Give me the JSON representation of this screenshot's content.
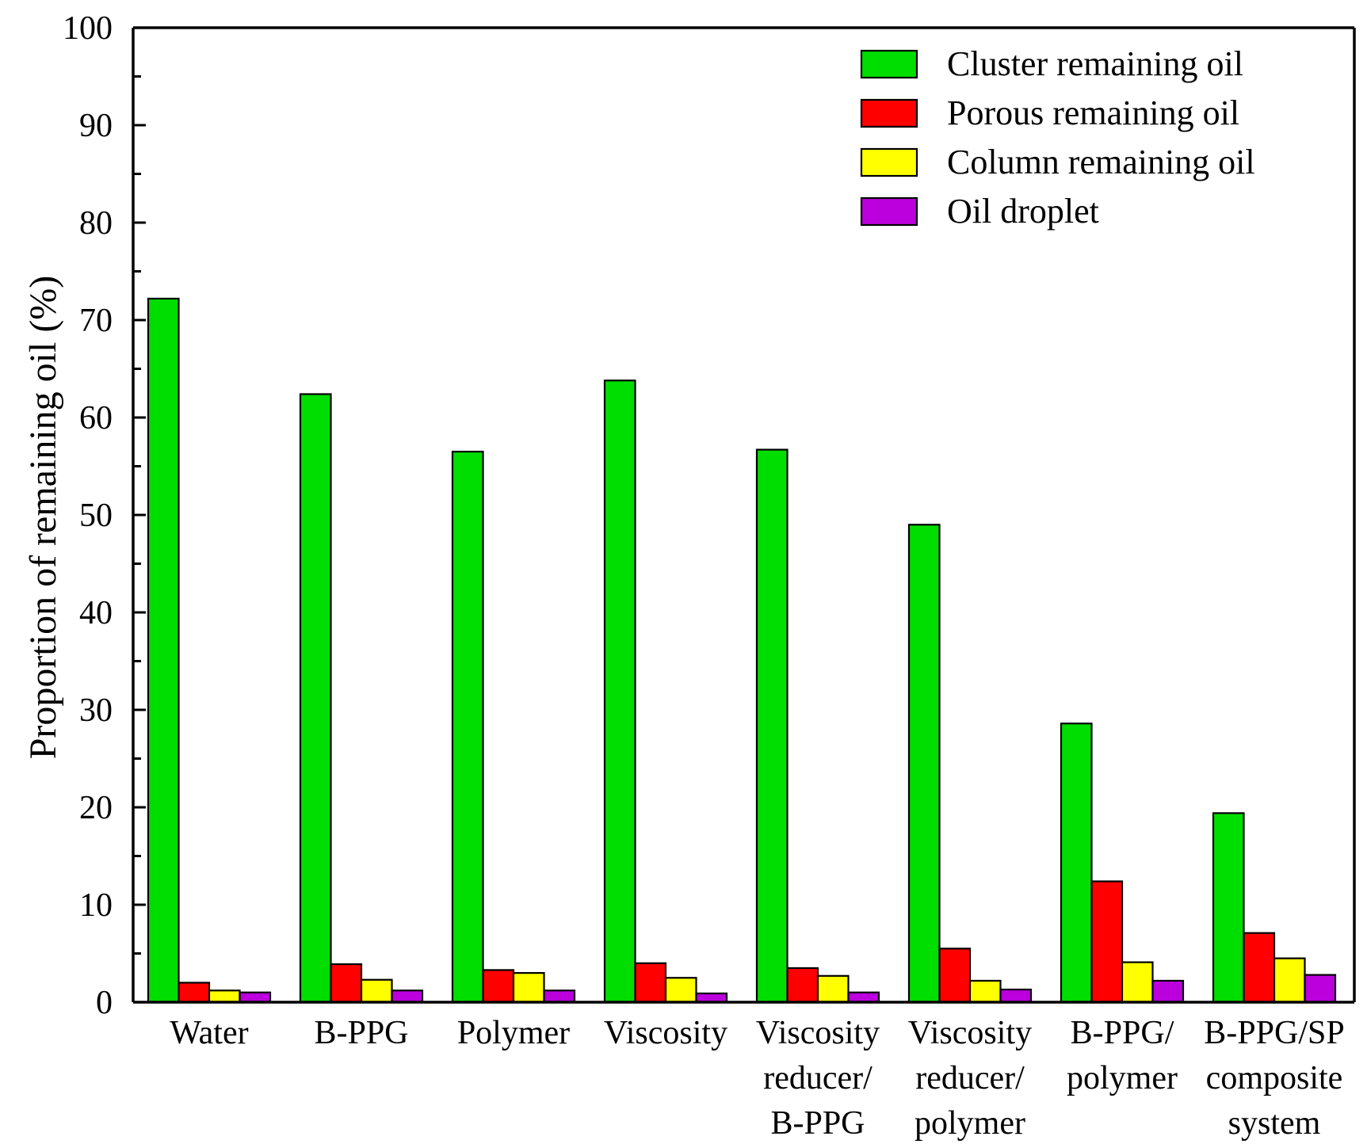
{
  "chart_data": {
    "type": "bar",
    "title": "",
    "xlabel": "",
    "ylabel": "Proportion of remaining oil (%)",
    "ylim": [
      0,
      100
    ],
    "yticks": [
      0,
      10,
      20,
      30,
      40,
      50,
      60,
      70,
      80,
      90,
      100
    ],
    "grid": false,
    "legend_position": "top-right",
    "categories": [
      [
        "Water"
      ],
      [
        "B-PPG"
      ],
      [
        "Polymer"
      ],
      [
        "Viscosity"
      ],
      [
        "Viscosity",
        "reducer/",
        "B-PPG"
      ],
      [
        "Viscosity",
        "reducer/",
        "polymer"
      ],
      [
        "B-PPG/",
        "polymer"
      ],
      [
        "B-PPG/SP",
        "composite",
        "system"
      ]
    ],
    "series": [
      {
        "name": "Cluster remaining oil",
        "color": "#00dd00",
        "values": [
          72.2,
          62.4,
          56.5,
          63.8,
          56.7,
          49.0,
          28.6,
          19.4
        ]
      },
      {
        "name": "Porous remaining oil",
        "color": "#ff0000",
        "values": [
          2.0,
          3.9,
          3.3,
          4.0,
          3.5,
          5.5,
          12.4,
          7.1
        ]
      },
      {
        "name": "Column remaining oil",
        "color": "#ffff00",
        "values": [
          1.2,
          2.3,
          3.0,
          2.5,
          2.7,
          2.2,
          4.1,
          4.5
        ]
      },
      {
        "name": "Oil droplet",
        "color": "#bb00dd",
        "values": [
          1.0,
          1.2,
          1.2,
          0.9,
          1.0,
          1.3,
          2.2,
          2.8
        ]
      }
    ]
  }
}
